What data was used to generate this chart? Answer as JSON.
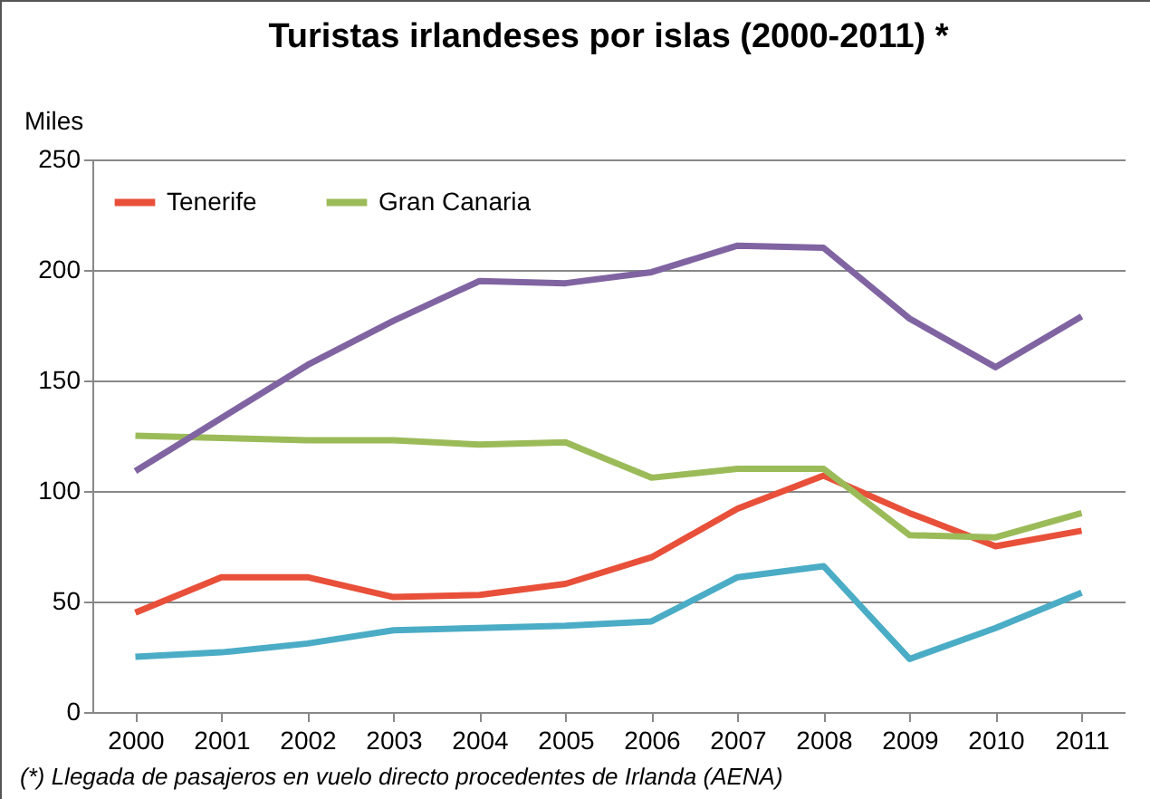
{
  "chart_data": {
    "type": "line",
    "title": "Turistas irlandeses por islas (2000-2011) *",
    "ylabel": "Miles",
    "categories": [
      "2000",
      "2001",
      "2002",
      "2003",
      "2004",
      "2005",
      "2006",
      "2007",
      "2008",
      "2009",
      "2010",
      "2011"
    ],
    "series": [
      {
        "name": "Tenerife",
        "color": "#e8503a",
        "values": [
          45,
          61,
          61,
          52,
          53,
          58,
          70,
          92,
          107,
          90,
          75,
          82
        ]
      },
      {
        "name": "Gran Canaria",
        "color": "#9bbb59",
        "values": [
          125,
          124,
          123,
          123,
          121,
          122,
          106,
          110,
          110,
          80,
          79,
          90
        ]
      },
      {
        "color": "#8064a2",
        "values": [
          109,
          133,
          157,
          177,
          195,
          194,
          199,
          211,
          210,
          178,
          156,
          179
        ]
      },
      {
        "color": "#4bacc6",
        "values": [
          25,
          27,
          31,
          37,
          38,
          39,
          41,
          61,
          66,
          24,
          38,
          54
        ]
      }
    ],
    "ylim": [
      0,
      250
    ],
    "yticks": [
      0,
      50,
      100,
      150,
      200,
      250
    ],
    "grid": "y",
    "legend": "top left",
    "marker": "none",
    "line_style": "solid",
    "annotations": [
      "(*) Llegada de pasajeros en vuelo directo procedentes de Irlanda (AENA)"
    ]
  }
}
